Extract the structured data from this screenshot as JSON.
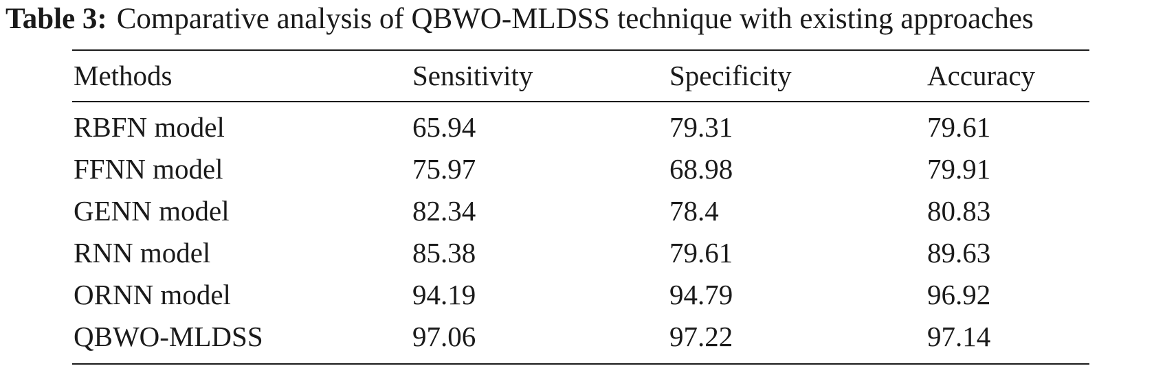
{
  "caption": {
    "label": "Table 3:",
    "text": "Comparative analysis of QBWO-MLDSS technique with existing approaches"
  },
  "table": {
    "headers": [
      "Methods",
      "Sensitivity",
      "Specificity",
      "Accuracy"
    ],
    "rows": [
      [
        "RBFN model",
        "65.94",
        "79.31",
        "79.61"
      ],
      [
        "FFNN model",
        "75.97",
        "68.98",
        "79.91"
      ],
      [
        "GENN model",
        "82.34",
        "78.4",
        "80.83"
      ],
      [
        "RNN model",
        "85.38",
        "79.61",
        "89.63"
      ],
      [
        "ORNN model",
        "94.19",
        "94.79",
        "96.92"
      ],
      [
        "QBWO-MLDSS",
        "97.06",
        "97.22",
        "97.14"
      ]
    ]
  }
}
